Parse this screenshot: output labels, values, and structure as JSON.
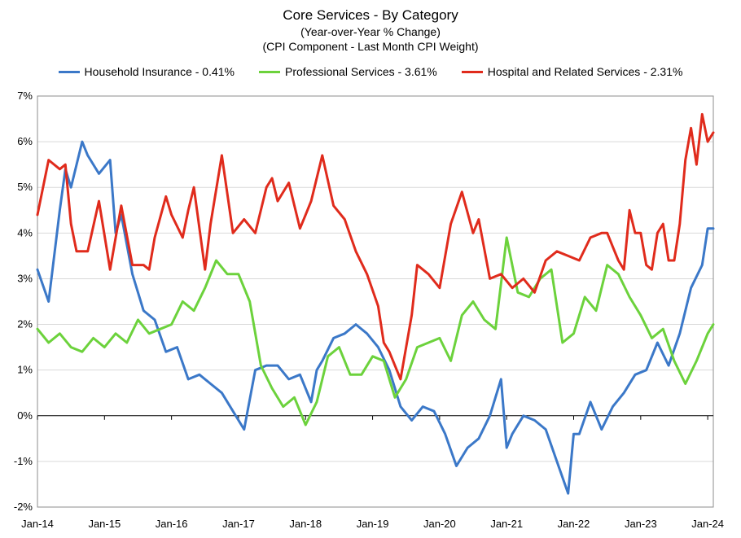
{
  "chart_data": {
    "type": "line",
    "title": "Core Services  - By Category",
    "subtitle": "(Year-over-Year % Change)",
    "subtitle2": "(CPI Component - Last Month CPI Weight)",
    "xlabel": "",
    "ylabel": "",
    "ylim": [
      -2,
      7
    ],
    "y_ticks": [
      "7%",
      "6%",
      "5%",
      "4%",
      "3%",
      "2%",
      "1%",
      "0%",
      "-1%",
      "-2%"
    ],
    "x_ticks": [
      "Jan-14",
      "Jan-15",
      "Jan-16",
      "Jan-17",
      "Jan-18",
      "Jan-19",
      "Jan-20",
      "Jan-21",
      "Jan-22",
      "Jan-23",
      "Jan-24"
    ],
    "x_range": [
      "2014-01",
      "2024-02"
    ],
    "grid": "horizontal",
    "legend_position": "top",
    "series": [
      {
        "name": "Household Insurance - 0.41%",
        "color": "#3b78c8",
        "x": [
          "2014-01",
          "2014-03",
          "2014-05",
          "2014-06",
          "2014-07",
          "2014-09",
          "2014-10",
          "2014-12",
          "2015-02",
          "2015-03",
          "2015-04",
          "2015-06",
          "2015-08",
          "2015-10",
          "2015-12",
          "2016-02",
          "2016-04",
          "2016-06",
          "2016-08",
          "2016-10",
          "2016-12",
          "2017-02",
          "2017-04",
          "2017-06",
          "2017-08",
          "2017-10",
          "2017-12",
          "2018-02",
          "2018-03",
          "2018-04",
          "2018-06",
          "2018-08",
          "2018-10",
          "2018-12",
          "2019-02",
          "2019-04",
          "2019-06",
          "2019-08",
          "2019-10",
          "2019-12",
          "2020-02",
          "2020-04",
          "2020-06",
          "2020-08",
          "2020-10",
          "2020-12",
          "2021-01",
          "2021-02",
          "2021-04",
          "2021-06",
          "2021-08",
          "2021-10",
          "2021-12",
          "2022-01",
          "2022-02",
          "2022-04",
          "2022-06",
          "2022-08",
          "2022-10",
          "2022-12",
          "2023-02",
          "2023-04",
          "2023-06",
          "2023-08",
          "2023-10",
          "2023-12",
          "2024-01",
          "2024-02"
        ],
        "values": [
          3.2,
          2.5,
          4.5,
          5.4,
          5.0,
          6.0,
          5.7,
          5.3,
          5.6,
          4.0,
          4.4,
          3.1,
          2.3,
          2.1,
          1.4,
          1.5,
          0.8,
          0.9,
          0.7,
          0.5,
          0.1,
          -0.3,
          1.0,
          1.1,
          1.1,
          0.8,
          0.9,
          0.3,
          1.0,
          1.2,
          1.7,
          1.8,
          2.0,
          1.8,
          1.5,
          1.0,
          0.2,
          -0.1,
          0.2,
          0.1,
          -0.4,
          -1.1,
          -0.7,
          -0.5,
          0.0,
          0.8,
          -0.7,
          -0.4,
          0.0,
          -0.1,
          -0.3,
          -1.0,
          -1.7,
          -0.4,
          -0.4,
          0.3,
          -0.3,
          0.2,
          0.5,
          0.9,
          1.0,
          1.6,
          1.1,
          1.8,
          2.8,
          3.3,
          4.1,
          4.1
        ]
      },
      {
        "name": "Professional Services - 3.61%",
        "color": "#6cd23c",
        "x": [
          "2014-01",
          "2014-03",
          "2014-05",
          "2014-07",
          "2014-09",
          "2014-11",
          "2015-01",
          "2015-03",
          "2015-05",
          "2015-07",
          "2015-09",
          "2015-11",
          "2016-01",
          "2016-03",
          "2016-05",
          "2016-07",
          "2016-09",
          "2016-11",
          "2017-01",
          "2017-03",
          "2017-05",
          "2017-07",
          "2017-09",
          "2017-11",
          "2018-01",
          "2018-03",
          "2018-05",
          "2018-07",
          "2018-09",
          "2018-11",
          "2019-01",
          "2019-03",
          "2019-05",
          "2019-07",
          "2019-09",
          "2019-11",
          "2020-01",
          "2020-03",
          "2020-05",
          "2020-07",
          "2020-09",
          "2020-11",
          "2021-01",
          "2021-03",
          "2021-05",
          "2021-07",
          "2021-09",
          "2021-11",
          "2022-01",
          "2022-03",
          "2022-05",
          "2022-07",
          "2022-09",
          "2022-11",
          "2023-01",
          "2023-03",
          "2023-05",
          "2023-07",
          "2023-09",
          "2023-11",
          "2024-01",
          "2024-02"
        ],
        "values": [
          1.9,
          1.6,
          1.8,
          1.5,
          1.4,
          1.7,
          1.5,
          1.8,
          1.6,
          2.1,
          1.8,
          1.9,
          2.0,
          2.5,
          2.3,
          2.8,
          3.4,
          3.1,
          3.1,
          2.5,
          1.1,
          0.6,
          0.2,
          0.4,
          -0.2,
          0.3,
          1.3,
          1.5,
          0.9,
          0.9,
          1.3,
          1.2,
          0.4,
          0.8,
          1.5,
          1.6,
          1.7,
          1.2,
          2.2,
          2.5,
          2.1,
          1.9,
          3.9,
          2.7,
          2.6,
          3.0,
          3.2,
          1.6,
          1.8,
          2.6,
          2.3,
          3.3,
          3.1,
          2.6,
          2.2,
          1.7,
          1.9,
          1.2,
          0.7,
          1.2,
          1.8,
          2.0
        ]
      },
      {
        "name": "Hospital and Related Services - 2.31%",
        "color": "#e02b1c",
        "x": [
          "2014-01",
          "2014-03",
          "2014-05",
          "2014-06",
          "2014-07",
          "2014-08",
          "2014-10",
          "2014-12",
          "2015-02",
          "2015-04",
          "2015-06",
          "2015-08",
          "2015-09",
          "2015-10",
          "2015-12",
          "2016-01",
          "2016-03",
          "2016-04",
          "2016-05",
          "2016-07",
          "2016-08",
          "2016-10",
          "2016-12",
          "2017-02",
          "2017-04",
          "2017-06",
          "2017-07",
          "2017-08",
          "2017-10",
          "2017-12",
          "2018-01",
          "2018-02",
          "2018-04",
          "2018-06",
          "2018-08",
          "2018-10",
          "2018-12",
          "2019-02",
          "2019-03",
          "2019-04",
          "2019-06",
          "2019-08",
          "2019-09",
          "2019-11",
          "2020-01",
          "2020-03",
          "2020-05",
          "2020-07",
          "2020-08",
          "2020-10",
          "2020-12",
          "2021-02",
          "2021-04",
          "2021-06",
          "2021-08",
          "2021-10",
          "2021-12",
          "2022-02",
          "2022-04",
          "2022-06",
          "2022-07",
          "2022-08",
          "2022-09",
          "2022-10",
          "2022-11",
          "2022-12",
          "2023-01",
          "2023-02",
          "2023-03",
          "2023-04",
          "2023-05",
          "2023-06",
          "2023-07",
          "2023-08",
          "2023-09",
          "2023-10",
          "2023-11",
          "2023-12",
          "2024-01",
          "2024-02"
        ],
        "values": [
          4.4,
          5.6,
          5.4,
          5.5,
          4.2,
          3.6,
          3.6,
          4.7,
          3.2,
          4.6,
          3.3,
          3.3,
          3.2,
          3.9,
          4.8,
          4.4,
          3.9,
          4.5,
          5.0,
          3.2,
          4.2,
          5.7,
          4.0,
          4.3,
          4.0,
          5.0,
          5.2,
          4.7,
          5.1,
          4.1,
          4.4,
          4.7,
          5.7,
          4.6,
          4.3,
          3.6,
          3.1,
          2.4,
          1.6,
          1.4,
          0.8,
          2.2,
          3.3,
          3.1,
          2.8,
          4.2,
          4.9,
          4.0,
          4.3,
          3.0,
          3.1,
          2.8,
          3.0,
          2.7,
          3.4,
          3.6,
          3.5,
          3.4,
          3.9,
          4.0,
          4.0,
          3.7,
          3.4,
          3.2,
          4.5,
          4.0,
          4.0,
          3.3,
          3.2,
          4.0,
          4.2,
          3.4,
          3.4,
          4.2,
          5.6,
          6.3,
          5.5,
          6.6,
          6.0,
          6.2
        ]
      }
    ]
  }
}
